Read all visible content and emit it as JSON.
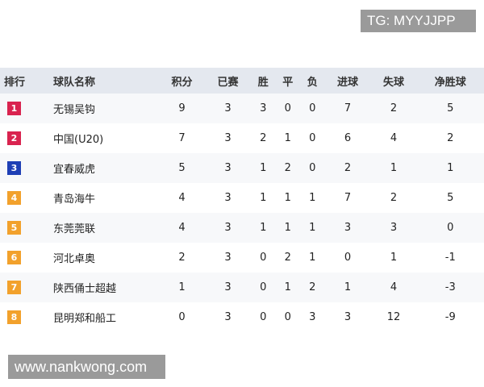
{
  "watermark_top": "TG: MYYJJPP",
  "watermark_bottom": "www.nankwong.com",
  "table": {
    "header": [
      "排行",
      "球队名称",
      "积分",
      "已赛",
      "胜",
      "平",
      "负",
      "进球",
      "失球",
      "净胜球"
    ],
    "rows": [
      [
        1,
        "无锡吴钩",
        9,
        3,
        3,
        0,
        0,
        7,
        2,
        5
      ],
      [
        2,
        "中国(U20)",
        7,
        3,
        2,
        1,
        0,
        6,
        4,
        2
      ],
      [
        3,
        "宜春威虎",
        5,
        3,
        1,
        2,
        0,
        2,
        1,
        1
      ],
      [
        4,
        "青岛海牛",
        4,
        3,
        1,
        1,
        1,
        7,
        2,
        5
      ],
      [
        5,
        "东莞莞联",
        4,
        3,
        1,
        1,
        1,
        3,
        3,
        0
      ],
      [
        6,
        "河北卓奥",
        2,
        3,
        0,
        2,
        1,
        0,
        1,
        -1
      ],
      [
        7,
        "陕西俑士超越",
        1,
        3,
        0,
        1,
        2,
        1,
        4,
        -3
      ],
      [
        8,
        "昆明郑和船工",
        0,
        3,
        0,
        0,
        3,
        3,
        12,
        -9
      ]
    ]
  }
}
